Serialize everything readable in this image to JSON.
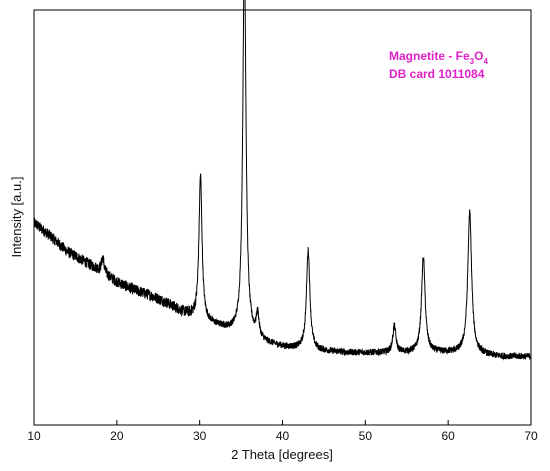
{
  "chart_data": {
    "type": "line",
    "title": "",
    "xlabel": "2 Theta [degrees]",
    "ylabel": "Intensity [a.u.]",
    "xlim": [
      10,
      70
    ],
    "x_ticks": [
      10,
      20,
      30,
      40,
      50,
      60,
      70
    ],
    "x_tick_labels": [
      "10",
      "20",
      "30",
      "40",
      "50",
      "60",
      "70"
    ],
    "y_ticks_shown": false,
    "grid": false,
    "annotation": {
      "prefix": "Magnetite - Fe",
      "sub1": "3",
      "mid": "O",
      "sub2": "4",
      "line2": "DB card 1011084",
      "color": "#e020c8",
      "position": "top-right"
    },
    "line_color": "#000000",
    "series": [
      {
        "baseline": [
          [
            10,
            0.49
          ],
          [
            12,
            0.455
          ],
          [
            14,
            0.415
          ],
          [
            16,
            0.39
          ],
          [
            18,
            0.365
          ],
          [
            20,
            0.335
          ],
          [
            22,
            0.315
          ],
          [
            24,
            0.3
          ],
          [
            26,
            0.28
          ],
          [
            28,
            0.255
          ],
          [
            30,
            0.235
          ],
          [
            32,
            0.22
          ],
          [
            34,
            0.205
          ],
          [
            36,
            0.19
          ],
          [
            38,
            0.175
          ],
          [
            40,
            0.165
          ],
          [
            44,
            0.155
          ],
          [
            48,
            0.15
          ],
          [
            52,
            0.15
          ],
          [
            56,
            0.15
          ],
          [
            60,
            0.15
          ],
          [
            64,
            0.145
          ],
          [
            66,
            0.14
          ],
          [
            70,
            0.14
          ]
        ],
        "peaks": [
          {
            "x": 18.3,
            "h": 0.04,
            "w": 0.18
          },
          {
            "x": 30.1,
            "h": 0.38,
            "w": 0.22
          },
          {
            "x": 35.4,
            "h": 1.0,
            "w": 0.23
          },
          {
            "x": 37.0,
            "h": 0.06,
            "w": 0.2
          },
          {
            "x": 43.1,
            "h": 0.26,
            "w": 0.25
          },
          {
            "x": 53.5,
            "h": 0.07,
            "w": 0.22
          },
          {
            "x": 57.0,
            "h": 0.25,
            "w": 0.26
          },
          {
            "x": 62.6,
            "h": 0.37,
            "w": 0.28
          }
        ],
        "noise_amplitude": 0.018
      }
    ]
  }
}
